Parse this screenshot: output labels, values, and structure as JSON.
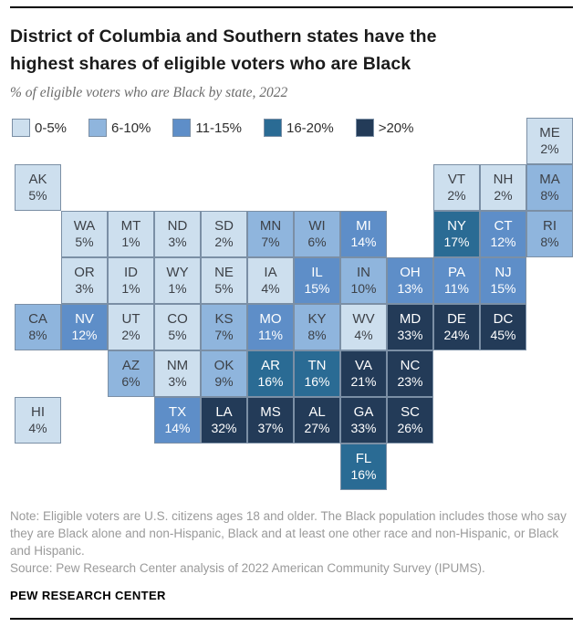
{
  "header": {
    "title_line1": "District of Columbia and Southern states have the",
    "title_line2": "highest shares of eligible voters who are Black",
    "subtitle": "% of eligible voters who are Black by state, 2022"
  },
  "colors": {
    "text_dark": "#3d4147",
    "text_light": "#ffffff",
    "tile_border": "#7b8fa5",
    "rule": "#000000"
  },
  "chart_data": {
    "type": "tile-grid-map",
    "title": "District of Columbia and Southern states have the highest shares of eligible voters who are Black",
    "subtitle": "% of eligible voters who are Black by state, 2022",
    "unit": "% of eligible voters who are Black",
    "legend_position": "top-left",
    "legend": [
      {
        "label": "0-5%",
        "color": "#cddfee"
      },
      {
        "label": "6-10%",
        "color": "#8fb5dd"
      },
      {
        "label": "11-15%",
        "color": "#5e8ec8"
      },
      {
        "label": "16-20%",
        "color": "#2a6b94"
      },
      {
        "label": ">20%",
        "color": "#233b58"
      }
    ],
    "states": [
      {
        "abbr": "ME",
        "pct": 2,
        "value": "2%",
        "row": 1,
        "col": 12,
        "cat": 0
      },
      {
        "abbr": "AK",
        "pct": 5,
        "value": "5%",
        "row": 2,
        "col": 1,
        "cat": 0
      },
      {
        "abbr": "VT",
        "pct": 2,
        "value": "2%",
        "row": 2,
        "col": 10,
        "cat": 0
      },
      {
        "abbr": "NH",
        "pct": 2,
        "value": "2%",
        "row": 2,
        "col": 11,
        "cat": 0
      },
      {
        "abbr": "MA",
        "pct": 8,
        "value": "8%",
        "row": 2,
        "col": 12,
        "cat": 1
      },
      {
        "abbr": "WA",
        "pct": 5,
        "value": "5%",
        "row": 3,
        "col": 2,
        "cat": 0
      },
      {
        "abbr": "MT",
        "pct": 1,
        "value": "1%",
        "row": 3,
        "col": 3,
        "cat": 0
      },
      {
        "abbr": "ND",
        "pct": 3,
        "value": "3%",
        "row": 3,
        "col": 4,
        "cat": 0
      },
      {
        "abbr": "SD",
        "pct": 2,
        "value": "2%",
        "row": 3,
        "col": 5,
        "cat": 0
      },
      {
        "abbr": "MN",
        "pct": 7,
        "value": "7%",
        "row": 3,
        "col": 6,
        "cat": 1
      },
      {
        "abbr": "WI",
        "pct": 6,
        "value": "6%",
        "row": 3,
        "col": 7,
        "cat": 1
      },
      {
        "abbr": "MI",
        "pct": 14,
        "value": "14%",
        "row": 3,
        "col": 8,
        "cat": 2
      },
      {
        "abbr": "NY",
        "pct": 17,
        "value": "17%",
        "row": 3,
        "col": 10,
        "cat": 3
      },
      {
        "abbr": "CT",
        "pct": 12,
        "value": "12%",
        "row": 3,
        "col": 11,
        "cat": 2
      },
      {
        "abbr": "RI",
        "pct": 8,
        "value": "8%",
        "row": 3,
        "col": 12,
        "cat": 1
      },
      {
        "abbr": "OR",
        "pct": 3,
        "value": "3%",
        "row": 4,
        "col": 2,
        "cat": 0
      },
      {
        "abbr": "ID",
        "pct": 1,
        "value": "1%",
        "row": 4,
        "col": 3,
        "cat": 0
      },
      {
        "abbr": "WY",
        "pct": 1,
        "value": "1%",
        "row": 4,
        "col": 4,
        "cat": 0
      },
      {
        "abbr": "NE",
        "pct": 5,
        "value": "5%",
        "row": 4,
        "col": 5,
        "cat": 0
      },
      {
        "abbr": "IA",
        "pct": 4,
        "value": "4%",
        "row": 4,
        "col": 6,
        "cat": 0
      },
      {
        "abbr": "IL",
        "pct": 15,
        "value": "15%",
        "row": 4,
        "col": 7,
        "cat": 2
      },
      {
        "abbr": "IN",
        "pct": 10,
        "value": "10%",
        "row": 4,
        "col": 8,
        "cat": 1
      },
      {
        "abbr": "OH",
        "pct": 13,
        "value": "13%",
        "row": 4,
        "col": 9,
        "cat": 2
      },
      {
        "abbr": "PA",
        "pct": 11,
        "value": "11%",
        "row": 4,
        "col": 10,
        "cat": 2
      },
      {
        "abbr": "NJ",
        "pct": 15,
        "value": "15%",
        "row": 4,
        "col": 11,
        "cat": 2
      },
      {
        "abbr": "CA",
        "pct": 8,
        "value": "8%",
        "row": 5,
        "col": 1,
        "cat": 1
      },
      {
        "abbr": "NV",
        "pct": 12,
        "value": "12%",
        "row": 5,
        "col": 2,
        "cat": 2
      },
      {
        "abbr": "UT",
        "pct": 2,
        "value": "2%",
        "row": 5,
        "col": 3,
        "cat": 0
      },
      {
        "abbr": "CO",
        "pct": 5,
        "value": "5%",
        "row": 5,
        "col": 4,
        "cat": 0
      },
      {
        "abbr": "KS",
        "pct": 7,
        "value": "7%",
        "row": 5,
        "col": 5,
        "cat": 1
      },
      {
        "abbr": "MO",
        "pct": 11,
        "value": "11%",
        "row": 5,
        "col": 6,
        "cat": 2
      },
      {
        "abbr": "KY",
        "pct": 8,
        "value": "8%",
        "row": 5,
        "col": 7,
        "cat": 1
      },
      {
        "abbr": "WV",
        "pct": 4,
        "value": "4%",
        "row": 5,
        "col": 8,
        "cat": 0
      },
      {
        "abbr": "MD",
        "pct": 33,
        "value": "33%",
        "row": 5,
        "col": 9,
        "cat": 4
      },
      {
        "abbr": "DE",
        "pct": 24,
        "value": "24%",
        "row": 5,
        "col": 10,
        "cat": 4
      },
      {
        "abbr": "DC",
        "pct": 45,
        "value": "45%",
        "row": 5,
        "col": 11,
        "cat": 4
      },
      {
        "abbr": "AZ",
        "pct": 6,
        "value": "6%",
        "row": 6,
        "col": 3,
        "cat": 1
      },
      {
        "abbr": "NM",
        "pct": 3,
        "value": "3%",
        "row": 6,
        "col": 4,
        "cat": 0
      },
      {
        "abbr": "OK",
        "pct": 9,
        "value": "9%",
        "row": 6,
        "col": 5,
        "cat": 1
      },
      {
        "abbr": "AR",
        "pct": 16,
        "value": "16%",
        "row": 6,
        "col": 6,
        "cat": 3
      },
      {
        "abbr": "TN",
        "pct": 16,
        "value": "16%",
        "row": 6,
        "col": 7,
        "cat": 3
      },
      {
        "abbr": "VA",
        "pct": 21,
        "value": "21%",
        "row": 6,
        "col": 8,
        "cat": 4
      },
      {
        "abbr": "NC",
        "pct": 23,
        "value": "23%",
        "row": 6,
        "col": 9,
        "cat": 4
      },
      {
        "abbr": "HI",
        "pct": 4,
        "value": "4%",
        "row": 7,
        "col": 1,
        "cat": 0
      },
      {
        "abbr": "TX",
        "pct": 14,
        "value": "14%",
        "row": 7,
        "col": 4,
        "cat": 2
      },
      {
        "abbr": "LA",
        "pct": 32,
        "value": "32%",
        "row": 7,
        "col": 5,
        "cat": 4
      },
      {
        "abbr": "MS",
        "pct": 37,
        "value": "37%",
        "row": 7,
        "col": 6,
        "cat": 4
      },
      {
        "abbr": "AL",
        "pct": 27,
        "value": "27%",
        "row": 7,
        "col": 7,
        "cat": 4
      },
      {
        "abbr": "GA",
        "pct": 33,
        "value": "33%",
        "row": 7,
        "col": 8,
        "cat": 4
      },
      {
        "abbr": "SC",
        "pct": 26,
        "value": "26%",
        "row": 7,
        "col": 9,
        "cat": 4
      },
      {
        "abbr": "FL",
        "pct": 16,
        "value": "16%",
        "row": 8,
        "col": 8,
        "cat": 3
      }
    ]
  },
  "footer": {
    "note": "Note: Eligible voters are U.S. citizens ages 18 and older. The Black population includes those who say they are Black alone and non-Hispanic, Black and at least one other race and non-Hispanic, or Black and Hispanic.",
    "source": "Source: Pew Research Center analysis of 2022 American Community Survey (IPUMS).",
    "brand": "PEW RESEARCH CENTER"
  }
}
